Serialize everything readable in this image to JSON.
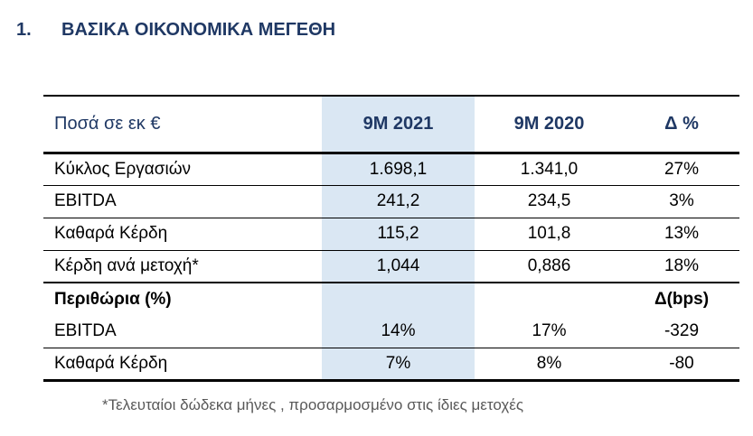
{
  "page": {
    "title_number": "1.",
    "title": "ΒΑΣΙΚΑ ΟΙΚΟΝΟΜΙΚΑ ΜΕΓΕΘΗ"
  },
  "table": {
    "header": {
      "unit": "Ποσά σε εκ €",
      "col_2021": "9M 2021",
      "col_2020": "9M 2020",
      "col_delta": "Δ %"
    },
    "rows": [
      {
        "label": "Κύκλος Εργασιών",
        "v2021": "1.698,1",
        "v2020": "1.341,0",
        "delta": "27%"
      },
      {
        "label": "EBITDA",
        "v2021": "241,2",
        "v2020": "234,5",
        "delta": "3%"
      },
      {
        "label": "Καθαρά Κέρδη",
        "v2021": "115,2",
        "v2020": "101,8",
        "delta": "13%"
      },
      {
        "label": "Κέρδη ανά μετοχή*",
        "v2021": "1,044",
        "v2020": "0,886",
        "delta": "18%"
      },
      {
        "label": "Περιθώρια (%)",
        "v2021": "",
        "v2020": "",
        "delta": "Δ(bps)"
      },
      {
        "label": "EBITDA",
        "v2021": "14%",
        "v2020": "17%",
        "delta": "-329"
      },
      {
        "label": "Καθαρά Κέρδη",
        "v2021": "7%",
        "v2020": "8%",
        "delta": "-80"
      }
    ],
    "footnote": "*Τελευταίοι δώδεκα μήνες , προσαρμοσμένο στις ίδιες μετοχές"
  },
  "colors": {
    "navy_text": "#1F3864",
    "highlight_column": "#DAE7F3",
    "body_text": "#000000",
    "footnote_text": "#595959",
    "border": "#000000"
  }
}
